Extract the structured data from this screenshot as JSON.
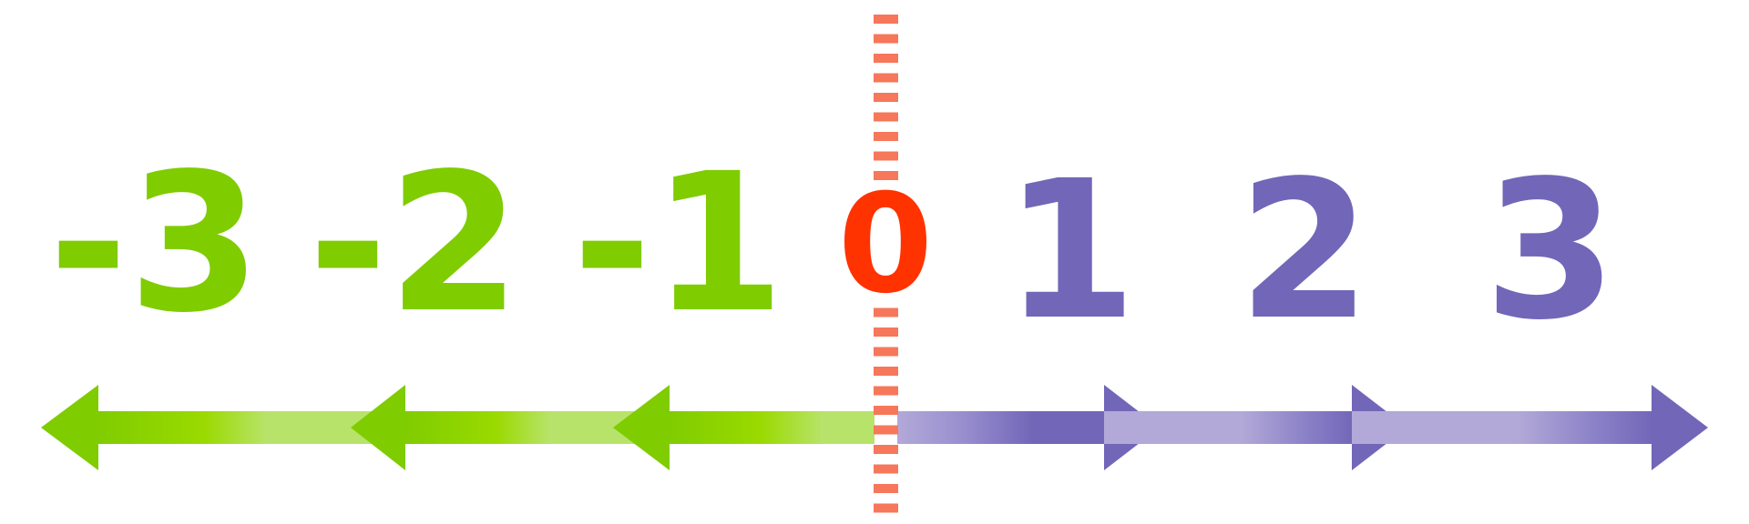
{
  "diagram": {
    "zero_label": "0",
    "negative_labels": [
      "-3",
      "-2",
      "-1"
    ],
    "positive_labels": [
      "1",
      "2",
      "3"
    ],
    "colors": {
      "negative": "#7fcc00",
      "negative_light": "#b8e36a",
      "negative_bright": "#9ada00",
      "positive": "#7266b8",
      "positive_light": "#b2a9d8",
      "zero_text": "#ff3300",
      "zero_line": "#f6775a"
    }
  }
}
